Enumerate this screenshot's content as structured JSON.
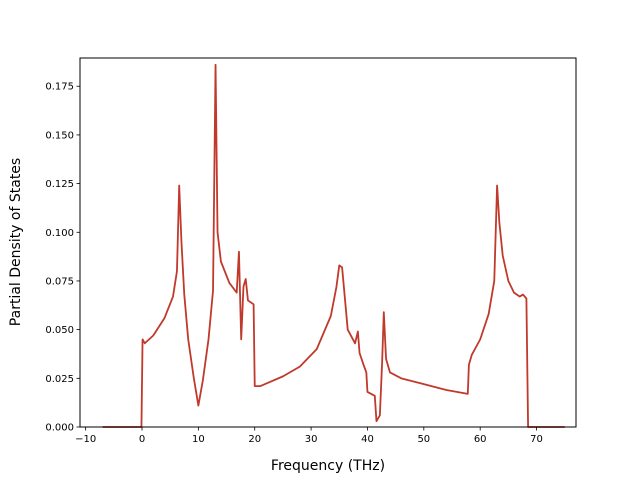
{
  "chart_data": {
    "type": "line",
    "title": "",
    "xlabel": "Frequency (THz)",
    "ylabel": "Partial Density of States",
    "xlim": [
      -11,
      77
    ],
    "ylim": [
      0,
      0.1895
    ],
    "xticks": [
      -10,
      0,
      10,
      20,
      30,
      40,
      50,
      60,
      70
    ],
    "xtick_labels": [
      "−10",
      "0",
      "10",
      "20",
      "30",
      "40",
      "50",
      "60",
      "70"
    ],
    "yticks": [
      0.0,
      0.025,
      0.05,
      0.075,
      0.1,
      0.125,
      0.15,
      0.175
    ],
    "ytick_labels": [
      "0.000",
      "0.025",
      "0.050",
      "0.075",
      "0.100",
      "0.125",
      "0.150",
      "0.175"
    ],
    "grid": false,
    "legend": "none",
    "series": [
      {
        "color": "#c0392b",
        "points": [
          [
            -7,
            0
          ],
          [
            -0.3,
            0
          ],
          [
            -0.1,
            0.0
          ],
          [
            0.1,
            0.045
          ],
          [
            0.5,
            0.043
          ],
          [
            2,
            0.047
          ],
          [
            4,
            0.056
          ],
          [
            5.5,
            0.067
          ],
          [
            6.2,
            0.08
          ],
          [
            6.6,
            0.124
          ],
          [
            7,
            0.095
          ],
          [
            7.5,
            0.068
          ],
          [
            8.2,
            0.045
          ],
          [
            9.2,
            0.025
          ],
          [
            10,
            0.011
          ],
          [
            10.8,
            0.024
          ],
          [
            11.8,
            0.045
          ],
          [
            12.6,
            0.07
          ],
          [
            13.05,
            0.186
          ],
          [
            13.4,
            0.1
          ],
          [
            14,
            0.085
          ],
          [
            15.5,
            0.074
          ],
          [
            16.8,
            0.069
          ],
          [
            17.2,
            0.09
          ],
          [
            17.6,
            0.045
          ],
          [
            18,
            0.072
          ],
          [
            18.4,
            0.076
          ],
          [
            18.8,
            0.065
          ],
          [
            19.8,
            0.063
          ],
          [
            20,
            0.021
          ],
          [
            21,
            0.021
          ],
          [
            25,
            0.026
          ],
          [
            28,
            0.031
          ],
          [
            31,
            0.04
          ],
          [
            33.5,
            0.057
          ],
          [
            34.5,
            0.072
          ],
          [
            35,
            0.083
          ],
          [
            35.5,
            0.082
          ],
          [
            36.5,
            0.05
          ],
          [
            37.8,
            0.043
          ],
          [
            38.3,
            0.049
          ],
          [
            38.6,
            0.038
          ],
          [
            39.3,
            0.032
          ],
          [
            39.8,
            0.028
          ],
          [
            40,
            0.018
          ],
          [
            41.3,
            0.016
          ],
          [
            41.6,
            0.003
          ],
          [
            42.2,
            0.006
          ],
          [
            42.6,
            0.033
          ],
          [
            42.9,
            0.059
          ],
          [
            43.3,
            0.035
          ],
          [
            44,
            0.028
          ],
          [
            46,
            0.025
          ],
          [
            50,
            0.022
          ],
          [
            54,
            0.019
          ],
          [
            57.8,
            0.017
          ],
          [
            58,
            0.032
          ],
          [
            58.5,
            0.037
          ],
          [
            60,
            0.045
          ],
          [
            61.5,
            0.058
          ],
          [
            62.5,
            0.075
          ],
          [
            63,
            0.124
          ],
          [
            63.4,
            0.105
          ],
          [
            64,
            0.088
          ],
          [
            65,
            0.075
          ],
          [
            66,
            0.069
          ],
          [
            67,
            0.067
          ],
          [
            67.6,
            0.068
          ],
          [
            68.2,
            0.066
          ],
          [
            68.5,
            0.0
          ],
          [
            75,
            0
          ]
        ]
      }
    ]
  }
}
